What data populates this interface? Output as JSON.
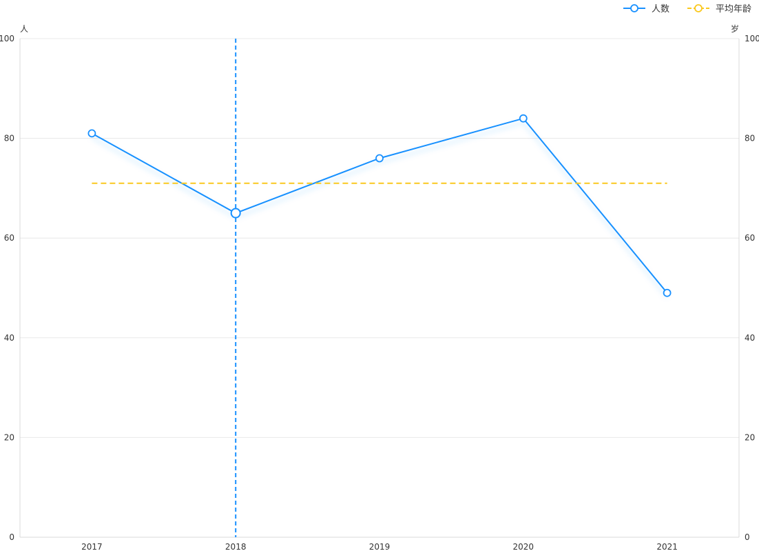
{
  "chart_data": {
    "type": "line",
    "categories": [
      "2017",
      "2018",
      "2019",
      "2020",
      "2021"
    ],
    "series": [
      {
        "name": "人数",
        "color": "#1890ff",
        "style": "solid",
        "axis": "left",
        "values": [
          81,
          65,
          76,
          84,
          49
        ]
      },
      {
        "name": "平均年龄",
        "color": "#fac81d",
        "style": "dashed",
        "axis": "right",
        "values": [
          71,
          71,
          71,
          71,
          71
        ]
      }
    ],
    "y_left": {
      "unit": "人",
      "min": 0,
      "max": 100,
      "ticks": [
        0,
        20,
        40,
        60,
        80,
        100
      ]
    },
    "y_right": {
      "unit": "岁",
      "min": 0,
      "max": 100,
      "ticks": [
        0,
        20,
        40,
        60,
        80,
        100
      ]
    },
    "legend_position": "top-right",
    "grid": true,
    "hover_category": "2018",
    "crosshair_color": "#1890ff",
    "grid_color": "#e8e8e8",
    "axis_color": "#d9d9d9"
  }
}
